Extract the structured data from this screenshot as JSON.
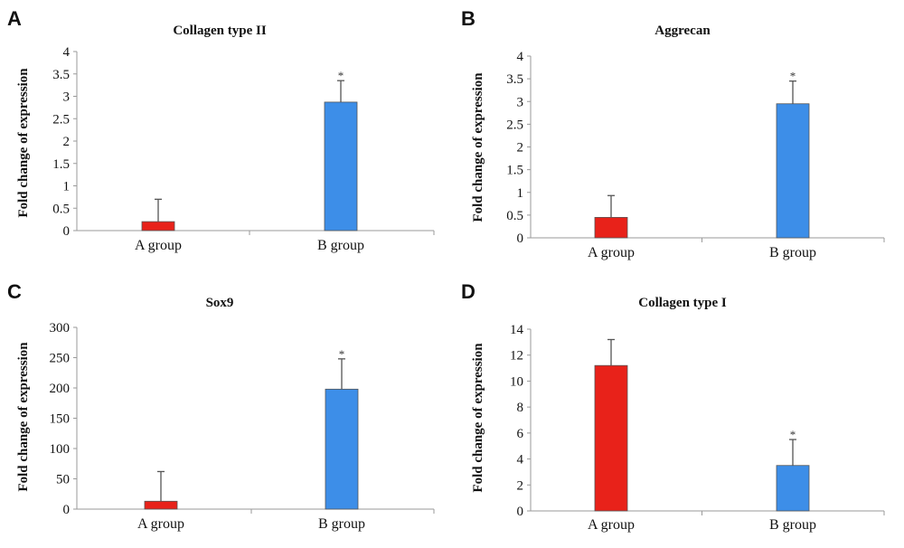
{
  "chart_data": [
    {
      "panel": "A",
      "type": "bar",
      "title": "Collagen type II",
      "ylabel": "Fold change of expression",
      "categories": [
        "A group",
        "B group"
      ],
      "values": [
        0.2,
        2.87
      ],
      "errors": [
        0.5,
        0.48
      ],
      "significance": [
        "",
        "*"
      ],
      "colors": [
        "#e8221a",
        "#3d8ee8"
      ],
      "ylim": [
        0,
        4
      ],
      "yticks": [
        "0",
        "0.5",
        "1",
        "1.5",
        "2",
        "2.5",
        "3",
        "3.5",
        "4"
      ]
    },
    {
      "panel": "B",
      "type": "bar",
      "title": "Aggrecan",
      "ylabel": "Fold change of expression",
      "categories": [
        "A group",
        "B group"
      ],
      "values": [
        0.45,
        2.95
      ],
      "errors": [
        0.48,
        0.5
      ],
      "significance": [
        "",
        "*"
      ],
      "colors": [
        "#e8221a",
        "#3d8ee8"
      ],
      "ylim": [
        0,
        4
      ],
      "yticks": [
        "0",
        "0.5",
        "1",
        "1.5",
        "2",
        "2.5",
        "3",
        "3.5",
        "4"
      ]
    },
    {
      "panel": "C",
      "type": "bar",
      "title": "Sox9",
      "ylabel": "Fold change of expression",
      "categories": [
        "A group",
        "B group"
      ],
      "values": [
        13,
        198
      ],
      "errors": [
        49,
        50
      ],
      "significance": [
        "",
        "*"
      ],
      "colors": [
        "#e8221a",
        "#3d8ee8"
      ],
      "ylim": [
        0,
        300
      ],
      "yticks": [
        "0",
        "50",
        "100",
        "150",
        "200",
        "250",
        "300"
      ]
    },
    {
      "panel": "D",
      "type": "bar",
      "title": "Collagen type I",
      "ylabel": "Fold change of expression",
      "categories": [
        "A group",
        "B group"
      ],
      "values": [
        11.2,
        3.5
      ],
      "errors": [
        2.0,
        2.0
      ],
      "significance": [
        "",
        "*"
      ],
      "colors": [
        "#e8221a",
        "#3d8ee8"
      ],
      "ylim": [
        0,
        14
      ],
      "yticks": [
        "0",
        "2",
        "4",
        "6",
        "8",
        "10",
        "12",
        "14"
      ]
    }
  ]
}
